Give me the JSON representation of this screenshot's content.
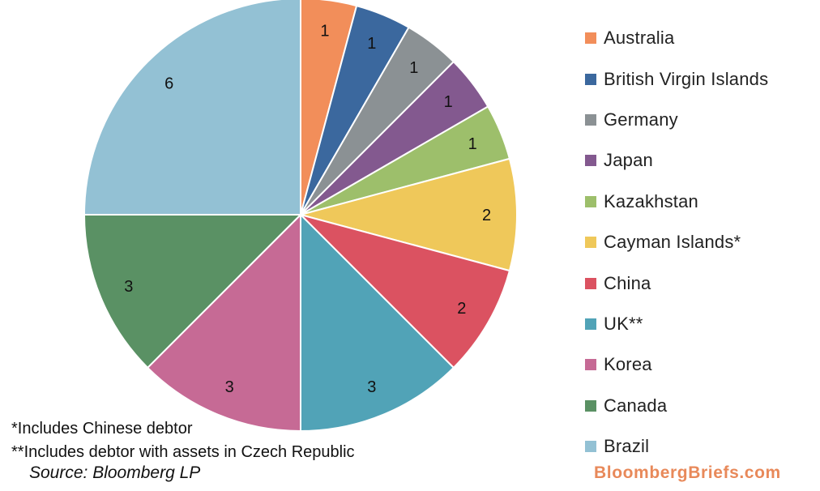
{
  "chart_data": {
    "type": "pie",
    "slices": [
      {
        "label": "Australia",
        "value": 1,
        "color": "#f28e5a"
      },
      {
        "label": "British Virgin Islands",
        "value": 1,
        "color": "#3b689e"
      },
      {
        "label": "Germany",
        "value": 1,
        "color": "#8b9194"
      },
      {
        "label": "Japan",
        "value": 1,
        "color": "#83598f"
      },
      {
        "label": "Kazakhstan",
        "value": 1,
        "color": "#9dbf6b"
      },
      {
        "label": "Cayman Islands*",
        "value": 2,
        "color": "#efc85a"
      },
      {
        "label": "China",
        "value": 2,
        "color": "#db5261"
      },
      {
        "label": "UK**",
        "value": 3,
        "color": "#51a3b7"
      },
      {
        "label": "Korea",
        "value": 3,
        "color": "#c66a95"
      },
      {
        "label": "Canada",
        "value": 3,
        "color": "#5a9164"
      },
      {
        "label": "Brazil",
        "value": 6,
        "color": "#93c1d4"
      }
    ],
    "legend_position": "right"
  },
  "footnotes": {
    "note1": "*Includes Chinese debtor",
    "note2": "**Includes debtor with assets in Czech Republic",
    "source": "Source: Bloomberg LP",
    "brand": "BloombergBriefs.com"
  }
}
